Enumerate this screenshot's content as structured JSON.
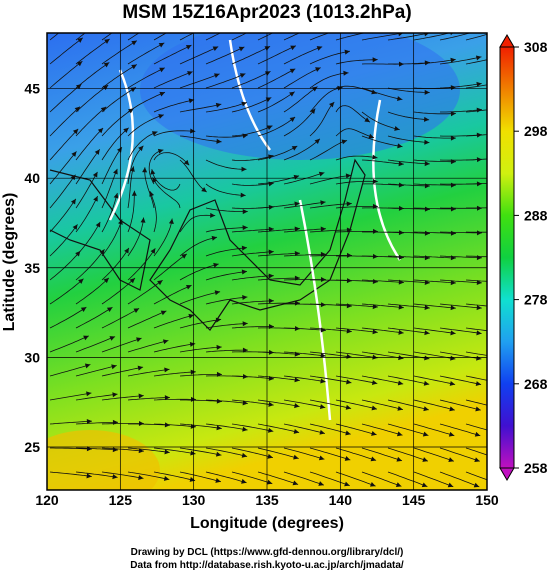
{
  "title": "MSM 15Z16Apr2023 (1013.2hPa)",
  "x_axis": {
    "label": "Longitude (degrees)",
    "lim": [
      120,
      150
    ],
    "ticks": [
      120,
      125,
      130,
      135,
      140,
      145,
      150
    ]
  },
  "y_axis": {
    "label": "Latitude  (degrees)",
    "lim": [
      22.6,
      48.1
    ],
    "ticks": [
      25,
      30,
      35,
      40,
      45
    ]
  },
  "colorbar": {
    "lim": [
      258,
      308
    ],
    "ticks": [
      258,
      268,
      278,
      288,
      298,
      308
    ]
  },
  "footer": [
    "Drawing by DCL (https://www.gfd-dennou.org/library/dcl/)",
    "Data from http://database.rish.kyoto-u.ac.jp/arch/jmadata/"
  ]
}
